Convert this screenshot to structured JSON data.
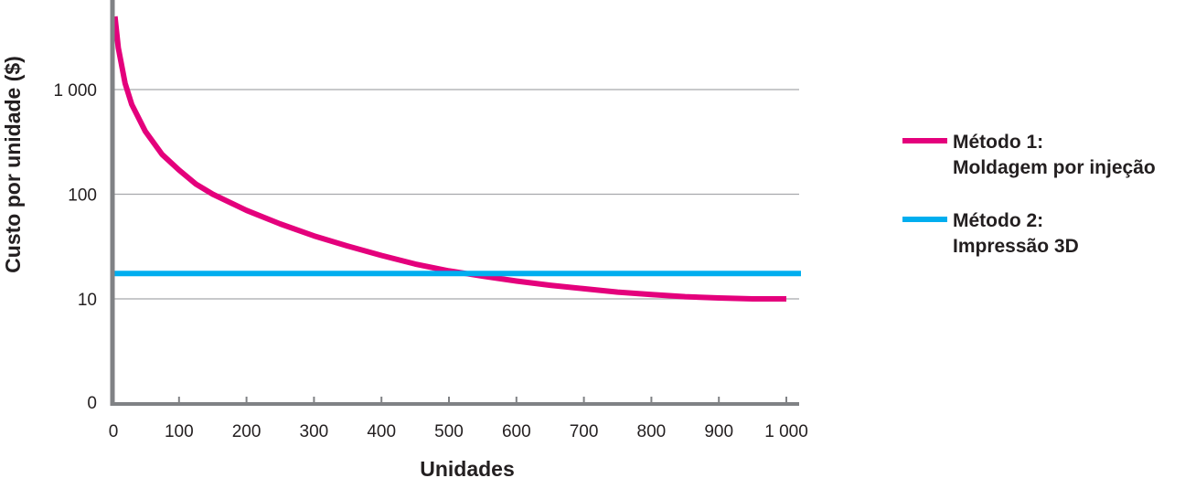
{
  "chart_data": {
    "type": "line",
    "xlabel": "Unidades",
    "ylabel": "Custo por unidade ($)",
    "x_ticks": [
      {
        "value": 0,
        "label": "0"
      },
      {
        "value": 100,
        "label": "100"
      },
      {
        "value": 200,
        "label": "200"
      },
      {
        "value": 300,
        "label": "300"
      },
      {
        "value": 400,
        "label": "400"
      },
      {
        "value": 500,
        "label": "500"
      },
      {
        "value": 600,
        "label": "600"
      },
      {
        "value": 700,
        "label": "700"
      },
      {
        "value": 800,
        "label": "800"
      },
      {
        "value": 900,
        "label": "900"
      },
      {
        "value": 1000,
        "label": "1 000"
      }
    ],
    "y_ticks": [
      {
        "value": 0,
        "label": "0"
      },
      {
        "value": 10,
        "label": "10"
      },
      {
        "value": 100,
        "label": "100"
      },
      {
        "value": 1000,
        "label": "1 000"
      }
    ],
    "y_scale": "log",
    "xlim": [
      0,
      1000
    ],
    "grid": "horizontal",
    "legend_position": "right",
    "series": [
      {
        "name": "Método 1:",
        "name_line2": "Moldagem por injeção",
        "color": "#e4007c",
        "x": [
          5,
          10,
          20,
          30,
          50,
          75,
          100,
          125,
          150,
          200,
          250,
          300,
          350,
          400,
          450,
          500,
          550,
          600,
          650,
          700,
          750,
          800,
          850,
          900,
          950,
          1000
        ],
        "y": [
          5000,
          2500,
          1150,
          720,
          400,
          240,
          170,
          125,
          100,
          70,
          52,
          40,
          32,
          26,
          21.5,
          18.5,
          16.5,
          14.8,
          13.5,
          12.5,
          11.6,
          11.0,
          10.5,
          10.2,
          10.0,
          10.0
        ]
      },
      {
        "name": "Método 2:",
        "name_line2": "Impressão 3D",
        "color": "#00aeef",
        "x": [
          0,
          1000
        ],
        "y": [
          17.5,
          17.5
        ]
      }
    ]
  }
}
